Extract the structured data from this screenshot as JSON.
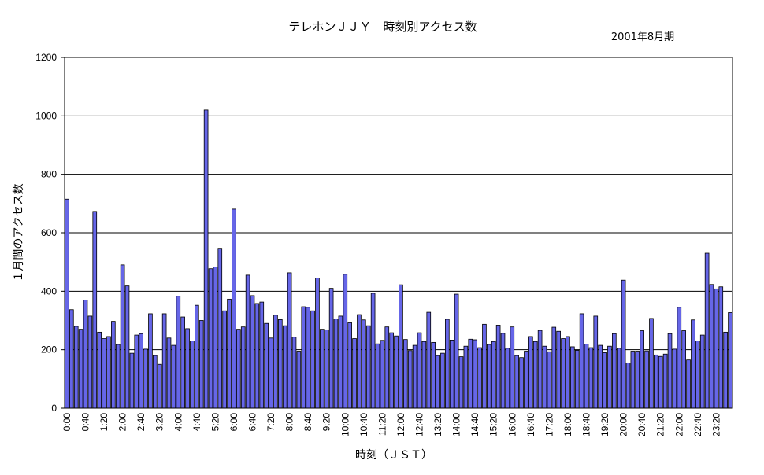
{
  "chart_data": {
    "type": "bar",
    "title": "テレホンＪＪＹ　時刻別アクセス数",
    "subtitle": "2001年8月期",
    "xlabel": "時刻（ＪＳＴ）",
    "ylabel": "１月間のアクセス数",
    "ylim": [
      0,
      1200
    ],
    "yticks": [
      0,
      200,
      400,
      600,
      800,
      1000,
      1200
    ],
    "grid": true,
    "bar_color": "#6666e8",
    "categories": [
      "0:00",
      "0:10",
      "0:20",
      "0:30",
      "0:40",
      "0:50",
      "1:00",
      "1:10",
      "1:20",
      "1:30",
      "1:40",
      "1:50",
      "2:00",
      "2:10",
      "2:20",
      "2:30",
      "2:40",
      "2:50",
      "3:00",
      "3:10",
      "3:20",
      "3:30",
      "3:40",
      "3:50",
      "4:00",
      "4:10",
      "4:20",
      "4:30",
      "4:40",
      "4:50",
      "5:00",
      "5:10",
      "5:20",
      "5:30",
      "5:40",
      "5:50",
      "6:00",
      "6:10",
      "6:20",
      "6:30",
      "6:40",
      "6:50",
      "7:00",
      "7:10",
      "7:20",
      "7:30",
      "7:40",
      "7:50",
      "8:00",
      "8:10",
      "8:20",
      "8:30",
      "8:40",
      "8:50",
      "9:00",
      "9:10",
      "9:20",
      "9:30",
      "9:40",
      "9:50",
      "10:00",
      "10:10",
      "10:20",
      "10:30",
      "10:40",
      "10:50",
      "11:00",
      "11:10",
      "11:20",
      "11:30",
      "11:40",
      "11:50",
      "12:00",
      "12:10",
      "12:20",
      "12:30",
      "12:40",
      "12:50",
      "13:00",
      "13:10",
      "13:20",
      "13:30",
      "13:40",
      "13:50",
      "14:00",
      "14:10",
      "14:20",
      "14:30",
      "14:40",
      "14:50",
      "15:00",
      "15:10",
      "15:20",
      "15:30",
      "15:40",
      "15:50",
      "16:00",
      "16:10",
      "16:20",
      "16:30",
      "16:40",
      "16:50",
      "17:00",
      "17:10",
      "17:20",
      "17:30",
      "17:40",
      "17:50",
      "18:00",
      "18:10",
      "18:20",
      "18:30",
      "18:40",
      "18:50",
      "19:00",
      "19:10",
      "19:20",
      "19:30",
      "19:40",
      "19:50",
      "20:00",
      "20:10",
      "20:20",
      "20:30",
      "20:40",
      "20:50",
      "21:00",
      "21:10",
      "21:20",
      "21:30",
      "21:40",
      "21:50",
      "22:00",
      "22:10",
      "22:20",
      "22:30",
      "22:40",
      "22:50",
      "23:00",
      "23:10",
      "23:20",
      "23:30",
      "23:40",
      "23:50"
    ],
    "tick_labels": [
      "0:00",
      "0:40",
      "1:20",
      "2:00",
      "2:40",
      "3:20",
      "4:00",
      "4:40",
      "5:20",
      "6:00",
      "6:40",
      "7:20",
      "8:00",
      "8:40",
      "9:20",
      "10:00",
      "10:40",
      "11:20",
      "12:00",
      "12:40",
      "13:20",
      "14:00",
      "14:40",
      "15:20",
      "16:00",
      "16:40",
      "17:20",
      "18:00",
      "18:40",
      "19:20",
      "20:00",
      "20:40",
      "21:20",
      "22:00",
      "22:40",
      "23:20"
    ],
    "values": [
      715,
      337,
      280,
      270,
      370,
      315,
      673,
      260,
      238,
      245,
      297,
      218,
      490,
      418,
      188,
      250,
      255,
      202,
      323,
      180,
      150,
      323,
      240,
      215,
      383,
      312,
      272,
      230,
      352,
      300,
      1020,
      477,
      483,
      547,
      333,
      373,
      681,
      270,
      278,
      455,
      385,
      358,
      363,
      290,
      240,
      318,
      303,
      282,
      463,
      243,
      195,
      347,
      345,
      333,
      445,
      270,
      268,
      410,
      305,
      315,
      458,
      292,
      238,
      320,
      302,
      282,
      393,
      220,
      232,
      278,
      258,
      247,
      422,
      235,
      197,
      215,
      258,
      228,
      328,
      225,
      180,
      188,
      304,
      233,
      390,
      176,
      212,
      236,
      234,
      207,
      287,
      218,
      228,
      284,
      256,
      205,
      278,
      180,
      173,
      195,
      245,
      228,
      266,
      212,
      193,
      277,
      263,
      238,
      245,
      210,
      198,
      323,
      219,
      207,
      315,
      215,
      190,
      212,
      255,
      205,
      438,
      155,
      195,
      195,
      265,
      196,
      307,
      182,
      177,
      185,
      255,
      202,
      345,
      265,
      165,
      302,
      230,
      250,
      530,
      423,
      408,
      415,
      260,
      327
    ]
  }
}
